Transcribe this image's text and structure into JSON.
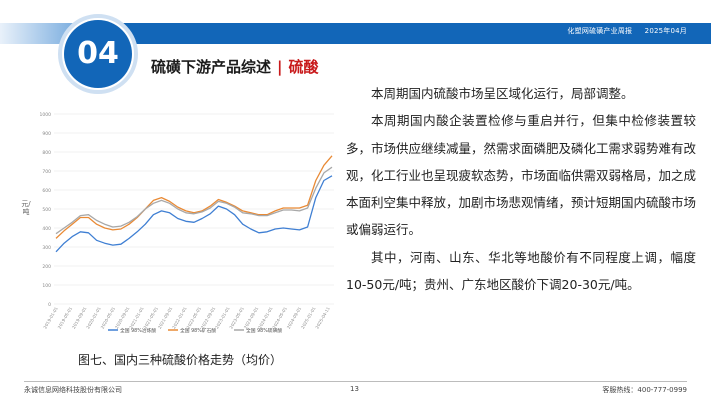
{
  "header": {
    "report_name": "化塑网硫磺产业周报",
    "date": "2025年04月",
    "section_number": "04",
    "title": "硫磺下游产品综述",
    "separator": "|",
    "subtitle": "硫酸",
    "accent_color": "#1266b8",
    "title_accent_color": "#c8191b"
  },
  "chart": {
    "caption": "图七、国内三种硫酸价格走势（均价）",
    "ylabel": "元/吨"
  },
  "chart_data": {
    "type": "line",
    "ylim": [
      0,
      1000
    ],
    "yticks": [
      0,
      100,
      200,
      300,
      400,
      500,
      600,
      700,
      800,
      900,
      1000
    ],
    "xticks": [
      "2019-01-01",
      "2019-05-01",
      "2019-09-01",
      "2020-01-01",
      "2020-05-01",
      "2020-09-01",
      "2021-01-01",
      "2021-05-01",
      "2021-09-01",
      "2022-01-01",
      "2022-05-01",
      "2022-09-01",
      "2023-01-01",
      "2023-05-01",
      "2023-09-01",
      "2024-01-01",
      "2024-05-01",
      "2024-09-01",
      "2025-01-01",
      "2025-04-11"
    ],
    "grid": true,
    "series": [
      {
        "name": "全国 98%冶炼酸",
        "color": "#3f7fd3",
        "values": [
          275,
          320,
          355,
          380,
          375,
          335,
          320,
          310,
          315,
          345,
          380,
          420,
          470,
          490,
          480,
          450,
          435,
          430,
          450,
          475,
          515,
          500,
          470,
          420,
          395,
          375,
          380,
          395,
          400,
          395,
          390,
          405,
          560,
          650,
          675
        ]
      },
      {
        "name": "全国 98%矿石酸",
        "color": "#e98a35",
        "values": [
          345,
          385,
          420,
          455,
          455,
          420,
          400,
          390,
          395,
          420,
          455,
          500,
          545,
          560,
          540,
          510,
          490,
          480,
          490,
          515,
          550,
          535,
          515,
          490,
          480,
          470,
          470,
          490,
          505,
          505,
          505,
          520,
          650,
          730,
          780
        ]
      },
      {
        "name": "全国 98%硫磺酸",
        "color": "#a8a8a8",
        "values": [
          370,
          400,
          430,
          465,
          470,
          440,
          420,
          405,
          410,
          430,
          460,
          500,
          530,
          545,
          530,
          500,
          480,
          475,
          485,
          505,
          540,
          530,
          510,
          480,
          475,
          465,
          465,
          480,
          495,
          495,
          490,
          505,
          610,
          690,
          720
        ]
      }
    ]
  },
  "body": {
    "paragraphs": [
      "本周期国内硫酸市场呈区域化运行，局部调整。",
      "本周期国内酸企装置检修与重启并行，但集中检修装置较多，市场供应继续减量，然需求面磷肥及磷化工需求弱势难有改观，化工行业也呈现疲软态势，市场面临供需双弱格局，加之成本面利空集中释放，加剧市场悲观情绪，预计短期国内硫酸市场或偏弱运行。",
      "其中，河南、山东、华北等地酸价有不同程度上调，幅度10-50元/吨；贵州、广东地区酸价下调20-30元/吨。"
    ]
  },
  "footer": {
    "company": "永诚信息网络科技股份有限公司",
    "page": "13",
    "hotline": "客服热线：400-777-0999"
  }
}
